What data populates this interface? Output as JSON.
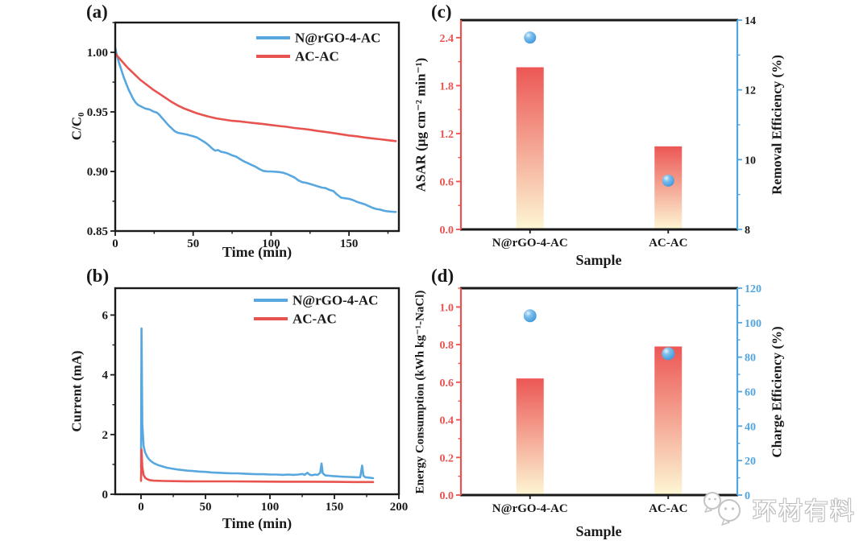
{
  "figure": {
    "background": "#ffffff"
  },
  "colors": {
    "blue_line": "#58A7DE",
    "red_line": "#E8534F",
    "axis_black": "#1a1a1a",
    "axis_red": "#E8534F",
    "axis_blue": "#52A5DF",
    "bar_gradient_top": "#EC5755",
    "bar_gradient_bottom": "#FDF7D4",
    "sphere_blue": "#3E97DC"
  },
  "panels": {
    "a": {
      "letter": "(a)",
      "xlabel": "Time (min)",
      "ylabel": "C/C₀"
    },
    "b": {
      "letter": "(b)",
      "xlabel": "Time (min)",
      "ylabel": "Current (mA)"
    },
    "c": {
      "letter": "(c)",
      "xlabel": "Sample",
      "ylabel_left": "ASAR (μg cm⁻² min⁻¹)",
      "ylabel_right": "Removal Efficiency (%)"
    },
    "d": {
      "letter": "(d)",
      "xlabel": "Sample",
      "ylabel_left": "Energy Consumption (kWh kg⁻¹-NaCl)",
      "ylabel_right": "Charge Efficiency (%)"
    }
  },
  "legend": {
    "a": [
      "N@rGO-4-AC",
      "AC-AC"
    ],
    "b": [
      "N@rGO-4-AC",
      "AC-AC"
    ]
  },
  "watermark": {
    "text": "环材有料",
    "icon": "wechat-chat-bubbles"
  },
  "chart_data": [
    {
      "panel": "a",
      "type": "line",
      "xlabel": "Time (min)",
      "ylabel": "C/C₀",
      "xlim": [
        0,
        182
      ],
      "ylim": [
        0.85,
        1.025
      ],
      "xticks": [
        0,
        50,
        100,
        150
      ],
      "xtick_labels": [
        "0",
        "50",
        "100",
        "150"
      ],
      "yticks": [
        0.85,
        0.9,
        0.95,
        1.0
      ],
      "ytick_labels": [
        "0.85",
        "0.90",
        "0.95",
        "1.00"
      ],
      "legend": [
        "N@rGO-4-AC",
        "AC-AC"
      ],
      "series": [
        {
          "name": "N@rGO-4-AC",
          "color": "#58A7DE",
          "x": [
            0,
            1,
            2.5,
            4,
            5.5,
            7,
            8.5,
            10,
            11.5,
            13,
            14.5,
            16,
            17.5,
            19,
            20.5,
            22,
            23.5,
            25,
            26.5,
            28,
            30,
            32,
            34,
            36,
            38,
            40,
            42,
            44,
            46,
            48,
            50,
            52.5,
            55,
            57.5,
            60,
            62,
            64,
            66,
            68,
            70,
            72.5,
            75,
            77.5,
            80,
            82.5,
            85,
            87.5,
            90,
            92.5,
            95,
            97.5,
            100,
            102.5,
            105,
            107.5,
            110,
            112.5,
            115,
            117.5,
            120,
            122.5,
            125,
            127.5,
            130,
            132.5,
            135,
            137.5,
            140,
            142.5,
            145,
            147.5,
            150,
            152.5,
            155,
            157.5,
            160,
            162.5,
            165,
            167.5,
            170,
            172.5,
            175,
            177.5,
            180
          ],
          "y": [
            1.004,
            0.998,
            0.991,
            0.985,
            0.979,
            0.974,
            0.969,
            0.965,
            0.961,
            0.958,
            0.956,
            0.955,
            0.954,
            0.953,
            0.9525,
            0.952,
            0.951,
            0.95,
            0.9495,
            0.948,
            0.945,
            0.942,
            0.939,
            0.9365,
            0.934,
            0.9325,
            0.932,
            0.9315,
            0.931,
            0.9302,
            0.9295,
            0.9285,
            0.9265,
            0.9245,
            0.922,
            0.9195,
            0.9175,
            0.918,
            0.9165,
            0.916,
            0.915,
            0.9135,
            0.9125,
            0.9105,
            0.9085,
            0.907,
            0.9055,
            0.904,
            0.902,
            0.9005,
            0.9,
            0.9,
            0.8998,
            0.8995,
            0.899,
            0.898,
            0.8965,
            0.895,
            0.8925,
            0.891,
            0.8905,
            0.8895,
            0.8885,
            0.8875,
            0.8865,
            0.886,
            0.8845,
            0.8835,
            0.8805,
            0.878,
            0.8775,
            0.877,
            0.876,
            0.8745,
            0.8735,
            0.8725,
            0.871,
            0.8695,
            0.8685,
            0.868,
            0.867,
            0.8665,
            0.8662,
            0.866
          ]
        },
        {
          "name": "AC-AC",
          "color": "#E8534F",
          "x": [
            0,
            4,
            8,
            12,
            16,
            20,
            24,
            28,
            32,
            36,
            40,
            44,
            48,
            52,
            56,
            60,
            65,
            70,
            75,
            80,
            85,
            90,
            95,
            100,
            105,
            110,
            115,
            120,
            125,
            130,
            135,
            140,
            145,
            150,
            155,
            160,
            165,
            170,
            175,
            180
          ],
          "y": [
            0.999,
            0.993,
            0.987,
            0.982,
            0.977,
            0.973,
            0.969,
            0.9655,
            0.962,
            0.9585,
            0.9555,
            0.953,
            0.951,
            0.949,
            0.9475,
            0.946,
            0.9445,
            0.9435,
            0.9425,
            0.942,
            0.9412,
            0.9405,
            0.9398,
            0.939,
            0.9382,
            0.9375,
            0.9365,
            0.9358,
            0.935,
            0.934,
            0.9332,
            0.9322,
            0.9312,
            0.9302,
            0.9295,
            0.9285,
            0.9278,
            0.927,
            0.9262,
            0.9255
          ]
        }
      ]
    },
    {
      "panel": "b",
      "type": "line",
      "xlabel": "Time (min)",
      "ylabel": "Current (mA)",
      "xlim": [
        -20,
        200
      ],
      "ylim": [
        0,
        6.9
      ],
      "xticks": [
        0,
        50,
        100,
        150,
        200
      ],
      "xtick_labels": [
        "0",
        "50",
        "100",
        "150",
        "200"
      ],
      "yticks": [
        0,
        2,
        4,
        6
      ],
      "ytick_labels": [
        "0",
        "2",
        "4",
        "6"
      ],
      "legend": [
        "N@rGO-4-AC",
        "AC-AC"
      ],
      "series": [
        {
          "name": "N@rGO-4-AC",
          "color": "#58A7DE",
          "x": [
            0,
            0.4,
            1,
            2,
            3,
            4.5,
            6,
            8,
            10,
            13,
            16,
            20,
            24,
            28,
            32,
            36,
            40,
            45,
            50,
            55,
            60,
            65,
            70,
            75,
            80,
            85,
            90,
            95,
            100,
            105,
            110,
            114,
            118,
            122,
            125,
            127,
            129,
            131,
            133,
            135,
            137,
            139,
            140,
            141,
            143,
            146,
            149,
            152,
            155,
            158,
            161,
            164,
            167,
            170,
            171.5,
            172.5,
            174,
            176,
            178,
            180
          ],
          "y": [
            0.9,
            5.55,
            2.35,
            1.62,
            1.42,
            1.28,
            1.18,
            1.1,
            1.04,
            0.98,
            0.94,
            0.89,
            0.86,
            0.83,
            0.81,
            0.79,
            0.78,
            0.76,
            0.75,
            0.73,
            0.72,
            0.71,
            0.7,
            0.7,
            0.69,
            0.68,
            0.67,
            0.67,
            0.66,
            0.66,
            0.65,
            0.66,
            0.65,
            0.66,
            0.68,
            0.65,
            0.72,
            0.65,
            0.64,
            0.66,
            0.65,
            0.72,
            1.03,
            0.7,
            0.63,
            0.62,
            0.61,
            0.6,
            0.59,
            0.585,
            0.58,
            0.575,
            0.57,
            0.57,
            0.96,
            0.62,
            0.57,
            0.56,
            0.55,
            0.54
          ]
        },
        {
          "name": "AC-AC",
          "color": "#E8534F",
          "x": [
            0,
            0.4,
            1,
            2,
            3.5,
            5,
            7,
            10,
            14,
            18,
            25,
            35,
            50,
            70,
            90,
            110,
            130,
            150,
            165,
            180
          ],
          "y": [
            0.45,
            1.5,
            0.92,
            0.64,
            0.54,
            0.5,
            0.47,
            0.455,
            0.45,
            0.445,
            0.44,
            0.435,
            0.43,
            0.43,
            0.425,
            0.42,
            0.42,
            0.415,
            0.41,
            0.41
          ]
        }
      ]
    },
    {
      "panel": "c",
      "type": "bar+scatter",
      "xlabel": "Sample",
      "ylabel_left": "ASAR (μg cm⁻² min⁻¹)",
      "ylabel_right": "Removal Efficiency (%)",
      "categories": [
        "N@rGO-4-AC",
        "AC-AC"
      ],
      "bars": {
        "name": "ASAR",
        "axis": "left",
        "values": [
          2.03,
          1.04
        ]
      },
      "points": {
        "name": "Removal Efficiency",
        "axis": "right",
        "values": [
          13.5,
          9.4
        ]
      },
      "ylim_left": [
        0,
        2.62
      ],
      "yticks_left": [
        0.0,
        0.6,
        1.2,
        1.8,
        2.4
      ],
      "ytick_labels_left": [
        "0.0",
        "0.6",
        "1.2",
        "1.8",
        "2.4"
      ],
      "ylim_right": [
        8,
        14
      ],
      "yticks_right": [
        8,
        10,
        12,
        14
      ],
      "ytick_labels_right": [
        "8",
        "10",
        "12",
        "14"
      ],
      "left_axis_color": "#E8534F",
      "right_axis_color": "#52A5DF",
      "left_tick_label_color": "#E8534F",
      "right_tick_label_color": "#1a1a1a"
    },
    {
      "panel": "d",
      "type": "bar+scatter",
      "xlabel": "Sample",
      "ylabel_left": "Energy Consumption (kWh kg⁻¹-NaCl)",
      "ylabel_right": "Charge Efficiency (%)",
      "categories": [
        "N@rGO-4-AC",
        "AC-AC"
      ],
      "bars": {
        "name": "Energy Consumption",
        "axis": "left",
        "values": [
          0.62,
          0.79
        ]
      },
      "points": {
        "name": "Charge Efficiency",
        "axis": "right",
        "values": [
          104,
          82
        ]
      },
      "ylim_left": [
        0,
        1.1
      ],
      "yticks_left": [
        0.0,
        0.2,
        0.4,
        0.6,
        0.8,
        1.0
      ],
      "ytick_labels_left": [
        "0.0",
        "0.2",
        "0.4",
        "0.6",
        "0.8",
        "1.0"
      ],
      "ylim_right": [
        0,
        120
      ],
      "yticks_right": [
        0,
        20,
        40,
        60,
        80,
        100,
        120
      ],
      "ytick_labels_right": [
        "0",
        "20",
        "40",
        "60",
        "80",
        "100",
        "120"
      ],
      "left_axis_color": "#E8534F",
      "right_axis_color": "#52A5DF",
      "left_tick_label_color": "#E8534F",
      "right_tick_label_color": "#52A5DF"
    }
  ]
}
